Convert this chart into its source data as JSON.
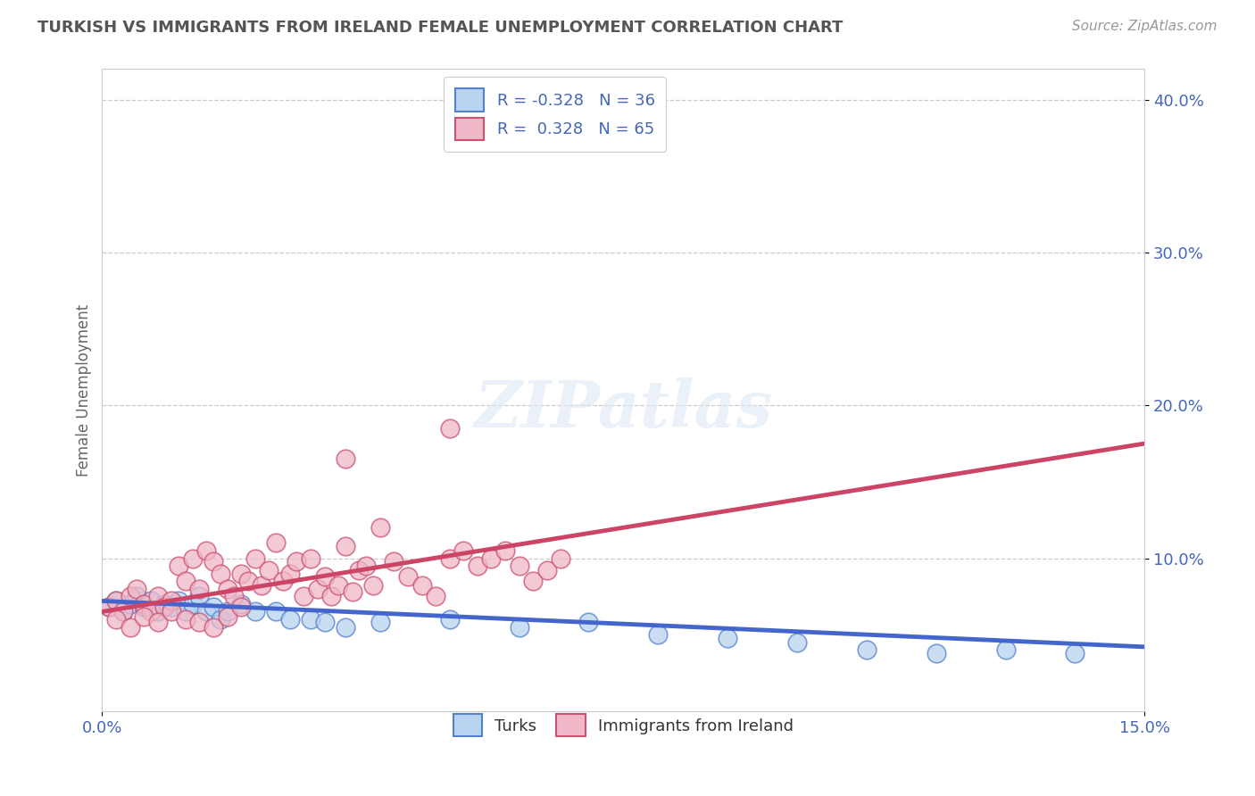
{
  "title": "TURKISH VS IMMIGRANTS FROM IRELAND FEMALE UNEMPLOYMENT CORRELATION CHART",
  "source": "Source: ZipAtlas.com",
  "xmin": 0.0,
  "xmax": 0.15,
  "ymin": 0.0,
  "ymax": 0.42,
  "legend_turks_label": "Turks",
  "legend_ireland_label": "Immigrants from Ireland",
  "legend_r_turks": "R = -0.328   N = 36",
  "legend_r_ireland": "R =  0.328   N = 65",
  "color_turks_face": "#b8d4f0",
  "color_turks_edge": "#5580cc",
  "color_ireland_face": "#f0b8c8",
  "color_ireland_edge": "#cc5070",
  "color_turks_line": "#4466cc",
  "color_ireland_line": "#cc4466",
  "color_axis_ticks": "#4466bb",
  "color_title": "#555555",
  "color_source": "#999999",
  "color_grid": "#cccccc",
  "background_color": "#ffffff",
  "watermark": "ZIPatlas",
  "turks_scatter_x": [
    0.001,
    0.002,
    0.003,
    0.004,
    0.005,
    0.006,
    0.007,
    0.008,
    0.009,
    0.01,
    0.011,
    0.012,
    0.013,
    0.014,
    0.015,
    0.016,
    0.017,
    0.018,
    0.02,
    0.022,
    0.025,
    0.027,
    0.03,
    0.032,
    0.035,
    0.04,
    0.05,
    0.06,
    0.07,
    0.08,
    0.09,
    0.1,
    0.11,
    0.12,
    0.13,
    0.14
  ],
  "turks_scatter_y": [
    0.068,
    0.072,
    0.065,
    0.07,
    0.075,
    0.068,
    0.072,
    0.065,
    0.07,
    0.068,
    0.072,
    0.065,
    0.07,
    0.075,
    0.065,
    0.068,
    0.06,
    0.065,
    0.07,
    0.065,
    0.065,
    0.06,
    0.06,
    0.058,
    0.055,
    0.058,
    0.06,
    0.055,
    0.058,
    0.05,
    0.048,
    0.045,
    0.04,
    0.038,
    0.04,
    0.038
  ],
  "ireland_scatter_x": [
    0.001,
    0.002,
    0.003,
    0.004,
    0.005,
    0.006,
    0.007,
    0.008,
    0.009,
    0.01,
    0.011,
    0.012,
    0.013,
    0.014,
    0.015,
    0.016,
    0.017,
    0.018,
    0.019,
    0.02,
    0.021,
    0.022,
    0.023,
    0.024,
    0.025,
    0.026,
    0.027,
    0.028,
    0.029,
    0.03,
    0.031,
    0.032,
    0.033,
    0.034,
    0.035,
    0.036,
    0.037,
    0.038,
    0.039,
    0.04,
    0.042,
    0.044,
    0.046,
    0.048,
    0.05,
    0.052,
    0.054,
    0.056,
    0.058,
    0.06,
    0.062,
    0.064,
    0.066,
    0.002,
    0.004,
    0.006,
    0.008,
    0.01,
    0.012,
    0.014,
    0.016,
    0.018,
    0.02,
    0.035,
    0.05
  ],
  "ireland_scatter_y": [
    0.068,
    0.072,
    0.065,
    0.075,
    0.08,
    0.07,
    0.065,
    0.075,
    0.068,
    0.072,
    0.095,
    0.085,
    0.1,
    0.08,
    0.105,
    0.098,
    0.09,
    0.08,
    0.075,
    0.09,
    0.085,
    0.1,
    0.082,
    0.092,
    0.11,
    0.085,
    0.09,
    0.098,
    0.075,
    0.1,
    0.08,
    0.088,
    0.075,
    0.082,
    0.108,
    0.078,
    0.092,
    0.095,
    0.082,
    0.12,
    0.098,
    0.088,
    0.082,
    0.075,
    0.1,
    0.105,
    0.095,
    0.1,
    0.105,
    0.095,
    0.085,
    0.092,
    0.1,
    0.06,
    0.055,
    0.062,
    0.058,
    0.065,
    0.06,
    0.058,
    0.055,
    0.062,
    0.068,
    0.165,
    0.185
  ],
  "turks_line_x": [
    0.0,
    0.15
  ],
  "turks_line_y": [
    0.072,
    0.042
  ],
  "ireland_line_x": [
    0.0,
    0.15
  ],
  "ireland_line_y": [
    0.065,
    0.175
  ]
}
